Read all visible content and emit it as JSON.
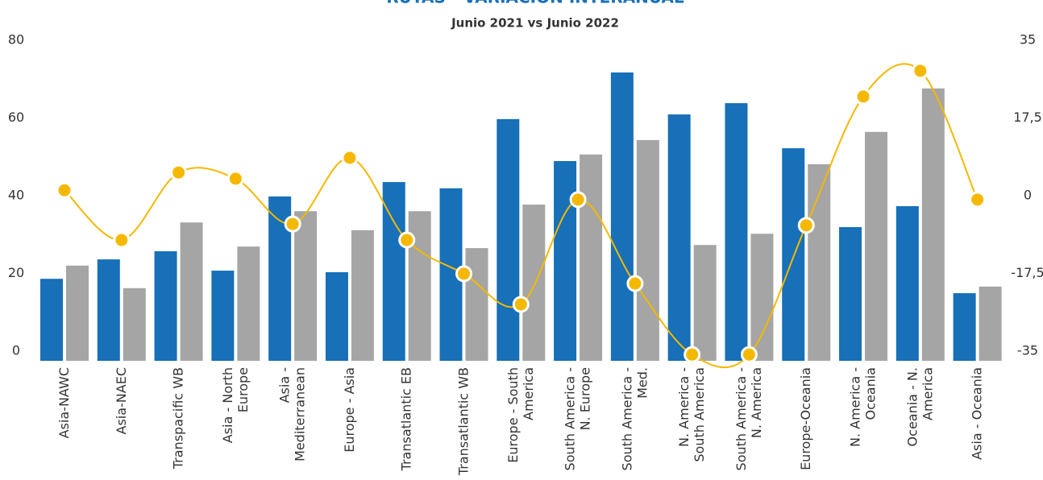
{
  "chart_data": {
    "type": "bar",
    "title": "RUTAS - VARIACIÓN INTERANUAL",
    "subtitle": "Junio 2021 vs Junio 2022",
    "categories": [
      "Asia-NAWC",
      "Asia-NAEC",
      "Transpacific WB",
      "Asia - North Europe",
      "Asia - Mediterranean",
      "Europe - Asia",
      "Transatlantic EB",
      "Transatlantic WB",
      "Europe - South America",
      "South America - N. Europe",
      "South America - Med.",
      "N. America - South America",
      "South America - N. America",
      "Europe-Oceania",
      "N. America - Oceania",
      "Oceania - N. America",
      "Asia - Oceania"
    ],
    "series": [
      {
        "color": "#1770b8",
        "values": [
          21.1,
          26.1,
          28.2,
          23.2,
          42.3,
          22.8,
          46.0,
          44.4,
          62.2,
          51.4,
          74.2,
          63.4,
          66.3,
          54.7,
          34.4,
          39.8,
          17.4
        ]
      },
      {
        "color": "#a5a5a5",
        "values": [
          24.5,
          18.7,
          35.6,
          29.4,
          38.5,
          33.6,
          38.5,
          29.0,
          40.2,
          53.1,
          56.8,
          29.8,
          32.7,
          50.6,
          58.9,
          70.1,
          19.1
        ]
      },
      {
        "type": "line",
        "axis": "y2",
        "color": "#f5b800",
        "values": [
          3.4,
          -7.8,
          7.4,
          6.0,
          -4.2,
          10.7,
          -7.8,
          -15.4,
          -22.3,
          1.3,
          -17.6,
          -33.6,
          -33.6,
          -4.5,
          24.5,
          30.3,
          1.3
        ]
      }
    ],
    "ylim": [
      0,
      80
    ],
    "yticks": [
      0,
      20,
      40,
      60,
      80
    ],
    "y2lim": [
      -35,
      35
    ],
    "y2ticks": [
      -35,
      {
        "value": -17.5,
        "label": "-17,5"
      },
      0,
      {
        "value": 17.5,
        "label": "17,5"
      },
      35
    ],
    "grid": false
  }
}
